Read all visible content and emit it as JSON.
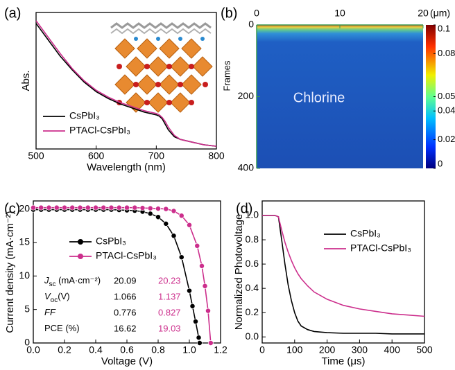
{
  "chart_data": [
    {
      "type": "line",
      "panel_label": "(a)",
      "xlabel": "Wavelength (nm)",
      "ylabel": "Abs.",
      "xlim": [
        500,
        800
      ],
      "xticks": [
        500,
        600,
        700,
        800
      ],
      "ylim": [
        0,
        1
      ],
      "legend_loc": "lower left",
      "series": [
        {
          "name": "CsPbI₃",
          "color": "#000000",
          "x": [
            500,
            520,
            540,
            560,
            580,
            600,
            620,
            640,
            660,
            680,
            690,
            700,
            705,
            710,
            715,
            720,
            730,
            740,
            760,
            780,
            800
          ],
          "values": [
            0.92,
            0.8,
            0.68,
            0.58,
            0.49,
            0.42,
            0.37,
            0.33,
            0.3,
            0.27,
            0.26,
            0.25,
            0.24,
            0.22,
            0.18,
            0.14,
            0.09,
            0.07,
            0.05,
            0.03,
            0.02
          ]
        },
        {
          "name": "PTACl-CsPbI₃",
          "color": "#cc2e8c",
          "x": [
            500,
            520,
            540,
            560,
            580,
            600,
            620,
            640,
            660,
            680,
            690,
            700,
            705,
            710,
            715,
            720,
            730,
            740,
            760,
            780,
            800
          ],
          "values": [
            0.94,
            0.82,
            0.7,
            0.59,
            0.5,
            0.43,
            0.38,
            0.34,
            0.31,
            0.28,
            0.27,
            0.26,
            0.25,
            0.23,
            0.2,
            0.16,
            0.1,
            0.07,
            0.05,
            0.03,
            0.02
          ]
        }
      ]
    },
    {
      "type": "heatmap",
      "panel_label": "(b)",
      "xlabel": "(μm)",
      "ylabel": "Frames",
      "annotation": "Chlorine",
      "xlim": [
        0,
        20
      ],
      "xticks": [
        0,
        10,
        20
      ],
      "ylim": [
        400,
        0
      ],
      "yticks": [
        0,
        200,
        400
      ],
      "clim": [
        0,
        0.1
      ],
      "cticks": [
        0,
        0.02,
        0.04,
        0.05,
        0.08,
        0.1
      ]
    },
    {
      "type": "line",
      "panel_label": "(c)",
      "xlabel": "Voltage (V)",
      "ylabel": "Current density (mA·cm⁻²)",
      "xlim": [
        0,
        1.2
      ],
      "xticks": [
        {
          "value": 0,
          "label": "0.0"
        },
        0.2,
        0.4,
        0.6,
        0.8,
        {
          "value": 1,
          "label": "1.0"
        },
        1.2
      ],
      "ylim": [
        0,
        21.2
      ],
      "yticks": [
        0,
        5,
        10,
        15,
        20
      ],
      "legend_loc": "upper center",
      "marker": "circle",
      "series": [
        {
          "name": "CsPbI₃",
          "color": "#000000",
          "x": [
            0,
            0.05,
            0.1,
            0.15,
            0.2,
            0.25,
            0.3,
            0.35,
            0.4,
            0.45,
            0.5,
            0.55,
            0.6,
            0.65,
            0.7,
            0.75,
            0.8,
            0.85,
            0.9,
            0.95,
            1.0,
            1.02,
            1.04,
            1.06,
            1.066
          ],
          "values": [
            19.9,
            19.9,
            19.9,
            19.9,
            19.9,
            19.9,
            19.9,
            19.9,
            19.9,
            19.9,
            19.9,
            19.85,
            19.8,
            19.75,
            19.6,
            19.3,
            18.8,
            17.8,
            16.0,
            12.8,
            7.8,
            5.5,
            3.2,
            0.8,
            0
          ]
        },
        {
          "name": "PTACl-CsPbI₃",
          "color": "#cc2e8c",
          "x": [
            0,
            0.05,
            0.1,
            0.15,
            0.2,
            0.25,
            0.3,
            0.35,
            0.4,
            0.45,
            0.5,
            0.55,
            0.6,
            0.65,
            0.7,
            0.75,
            0.8,
            0.85,
            0.9,
            0.95,
            1.0,
            1.05,
            1.08,
            1.1,
            1.12,
            1.137
          ],
          "values": [
            20.2,
            20.2,
            20.2,
            20.2,
            20.2,
            20.2,
            20.2,
            20.2,
            20.2,
            20.2,
            20.2,
            20.2,
            20.2,
            20.2,
            20.15,
            20.1,
            20.05,
            20.0,
            19.7,
            19.0,
            17.6,
            14.5,
            11.5,
            8.5,
            4.8,
            0
          ]
        }
      ],
      "table": [
        {
          "label": "J",
          "sub": "sc",
          "unit": " (mA·cm⁻²)",
          "values": [
            20.09,
            20.23
          ]
        },
        {
          "label": "V",
          "sub": "oc",
          "unit": "(V)",
          "values": [
            1.066,
            1.137
          ]
        },
        {
          "label": "FF",
          "values": [
            0.776,
            0.827
          ]
        },
        {
          "label": "PCE (%)",
          "values": [
            16.62,
            19.03
          ]
        }
      ]
    },
    {
      "type": "line",
      "panel_label": "(d)",
      "xlabel": "Time (μs)",
      "ylabel": "Normalized Photovoltage",
      "xlim": [
        0,
        500
      ],
      "xticks": [
        0,
        100,
        200,
        300,
        400,
        500
      ],
      "ylim": [
        -0.05,
        1.12
      ],
      "yticks": [
        {
          "value": 0,
          "label": "0.0"
        },
        0.2,
        0.4,
        0.6,
        0.8,
        {
          "value": 1,
          "label": "1.0"
        }
      ],
      "legend_loc": "upper right",
      "series": [
        {
          "name": "CsPbI₃",
          "color": "#000000",
          "x": [
            0,
            20,
            40,
            50,
            60,
            70,
            80,
            90,
            100,
            110,
            120,
            140,
            160,
            200,
            250,
            300,
            350,
            400,
            450,
            500
          ],
          "values": [
            1,
            1,
            1,
            0.99,
            0.8,
            0.6,
            0.43,
            0.3,
            0.2,
            0.13,
            0.09,
            0.06,
            0.045,
            0.035,
            0.03,
            0.03,
            0.03,
            0.025,
            0.025,
            0.025
          ]
        },
        {
          "name": "PTACl-CsPbI₃",
          "color": "#cc2e8c",
          "x": [
            0,
            20,
            40,
            50,
            60,
            70,
            80,
            90,
            100,
            110,
            120,
            140,
            160,
            200,
            250,
            300,
            350,
            400,
            450,
            500
          ],
          "values": [
            1,
            1,
            1,
            0.99,
            0.88,
            0.78,
            0.7,
            0.63,
            0.57,
            0.52,
            0.48,
            0.42,
            0.37,
            0.31,
            0.26,
            0.23,
            0.21,
            0.19,
            0.18,
            0.17
          ]
        }
      ]
    }
  ]
}
